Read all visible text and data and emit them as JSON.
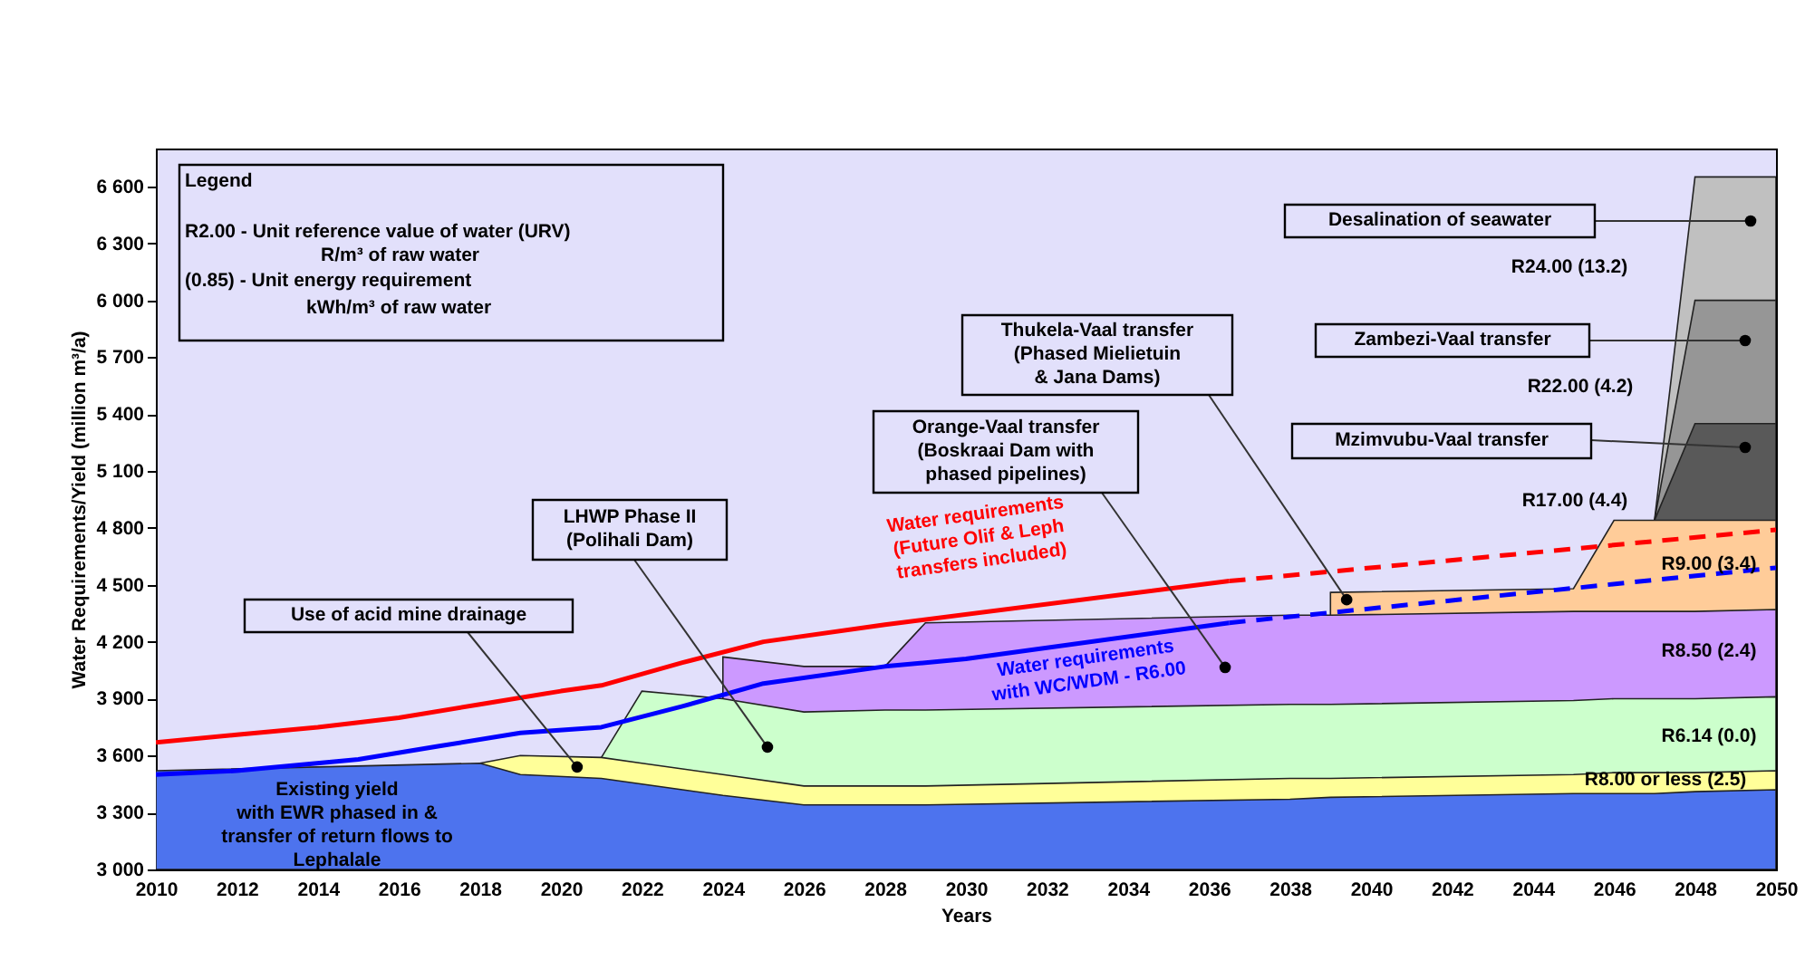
{
  "chart_data": {
    "type": "area",
    "xlabel": "Years",
    "ylabel": "Water Requirements/Yield (million m³/a)",
    "x": [
      2010,
      2018,
      2019,
      2021,
      2022,
      2023,
      2024,
      2026,
      2028,
      2029,
      2038,
      2039,
      2045,
      2046,
      2047,
      2048,
      2050
    ],
    "xlim": [
      2010,
      2050
    ],
    "xticks": [
      2010,
      2012,
      2014,
      2016,
      2018,
      2020,
      2022,
      2024,
      2026,
      2028,
      2030,
      2032,
      2034,
      2036,
      2038,
      2040,
      2042,
      2044,
      2046,
      2048,
      2050
    ],
    "ylim": [
      3000,
      6800
    ],
    "yticks": [
      {
        "value": 3000,
        "label": "3 000"
      },
      {
        "value": 3300,
        "label": "3 300"
      },
      {
        "value": 3600,
        "label": "3 600"
      },
      {
        "value": 3900,
        "label": "3 900"
      },
      {
        "value": 4200,
        "label": "4 200"
      },
      {
        "value": 4500,
        "label": "4 500"
      },
      {
        "value": 4800,
        "label": "4 800"
      },
      {
        "value": 5100,
        "label": "5 100"
      },
      {
        "value": 5400,
        "label": "5 400"
      },
      {
        "value": 5700,
        "label": "5 700"
      },
      {
        "value": 6000,
        "label": "6 000"
      },
      {
        "value": 6300,
        "label": "6 300"
      },
      {
        "value": 6600,
        "label": "6 600"
      }
    ],
    "series": [
      {
        "color": "#4d73ee",
        "values": [
          3520,
          3560,
          3500,
          3480,
          3450,
          3420,
          3390,
          3340,
          3340,
          3340,
          3370,
          3380,
          3400,
          3400,
          3400,
          3410,
          3420
        ]
      },
      {
        "color": "#ffff99",
        "values": [
          null,
          3560,
          3600,
          3590,
          3560,
          3530,
          3500,
          3440,
          3440,
          3440,
          3480,
          3480,
          3500,
          3510,
          3510,
          3510,
          3520
        ]
      },
      {
        "color": "#ccffcc",
        "values": [
          null,
          null,
          null,
          3590,
          3940,
          3920,
          3900,
          3830,
          3840,
          3840,
          3870,
          3870,
          3890,
          3900,
          3900,
          3900,
          3910
        ]
      },
      {
        "color": "#cc99ff",
        "values": [
          null,
          null,
          null,
          null,
          null,
          null,
          4120,
          4070,
          4070,
          4300,
          4340,
          4340,
          4360,
          4360,
          4360,
          4360,
          4370
        ]
      },
      {
        "color": "#ffcc99",
        "values": [
          null,
          null,
          null,
          null,
          null,
          null,
          null,
          null,
          null,
          null,
          null,
          4460,
          4480,
          4840,
          4840,
          4840,
          4840
        ]
      },
      {
        "color": "#595959",
        "values": [
          null,
          null,
          null,
          null,
          null,
          null,
          null,
          null,
          null,
          null,
          null,
          null,
          null,
          null,
          4840,
          5350,
          5350
        ]
      },
      {
        "color": "#969696",
        "values": [
          null,
          null,
          null,
          null,
          null,
          null,
          null,
          null,
          null,
          null,
          null,
          null,
          null,
          null,
          4840,
          6000,
          6000
        ]
      },
      {
        "color": "#c0c0c0",
        "values": [
          null,
          null,
          null,
          null,
          null,
          null,
          null,
          null,
          null,
          null,
          null,
          null,
          null,
          null,
          4840,
          6650,
          6650
        ]
      },
      {
        "type": "line",
        "color": "#ff0000",
        "line_style": "solid",
        "x": [
          2010,
          2012,
          2014,
          2016,
          2018,
          2020,
          2021,
          2023,
          2025,
          2028,
          2036.5
        ],
        "values": [
          3670,
          3710,
          3750,
          3800,
          3870,
          3940,
          3970,
          4090,
          4200,
          4290,
          4520
        ]
      },
      {
        "type": "line",
        "color": "#ff0000",
        "line_style": "dashed",
        "x": [
          2036.5,
          2050
        ],
        "values": [
          4520,
          4790
        ]
      },
      {
        "type": "line",
        "color": "#0000ff",
        "line_style": "solid",
        "x": [
          2010,
          2012,
          2015,
          2017,
          2019,
          2021,
          2023,
          2025,
          2028,
          2030,
          2036.5
        ],
        "values": [
          3500,
          3520,
          3580,
          3650,
          3720,
          3750,
          3860,
          3980,
          4070,
          4110,
          4300
        ]
      },
      {
        "type": "line",
        "color": "#0000ff",
        "line_style": "dashed",
        "x": [
          2036.5,
          2050
        ],
        "values": [
          4300,
          4590
        ]
      }
    ],
    "annotations": [
      "Legend\nR2.00 - Unit reference value of water (URV)\nR/m³ of raw water\n(0.85) - Unit energy requirement\nkWh/m³ of raw water",
      "Existing yield\nwith EWR phased in &\ntransfer of return flows to\nLephalale",
      {
        "text": "Use of acid mine drainage",
        "x": 2020.4,
        "y": 3540
      },
      {
        "text": "LHWP Phase II\n(Polihali Dam)",
        "x": 2025.1,
        "y": 3645
      },
      {
        "text": "Orange-Vaal transfer\n(Boskraai Dam with\nphased pipelines)",
        "x": 2036.4,
        "y": 4065
      },
      {
        "text": "Thukela-Vaal transfer\n(Phased Mielietuin\n& Jana Dams)",
        "x": 2039.4,
        "y": 4422
      },
      "Desalination of seawater",
      "Zambezi-Vaal transfer",
      "Mzimvubu-Vaal transfer",
      "R24.00 (13.2)",
      "R22.00 (4.2)",
      "R17.00 (4.4)",
      "R9.00 (3.4)",
      "R8.50 (2.4)",
      "R6.14 (0.0)",
      "R8.00 or less (2.5)",
      "Water requirements\n(Future Olif & Leph\ntransfers included)",
      "Water requirements\nwith WC/WDM  - R6.00"
    ]
  }
}
